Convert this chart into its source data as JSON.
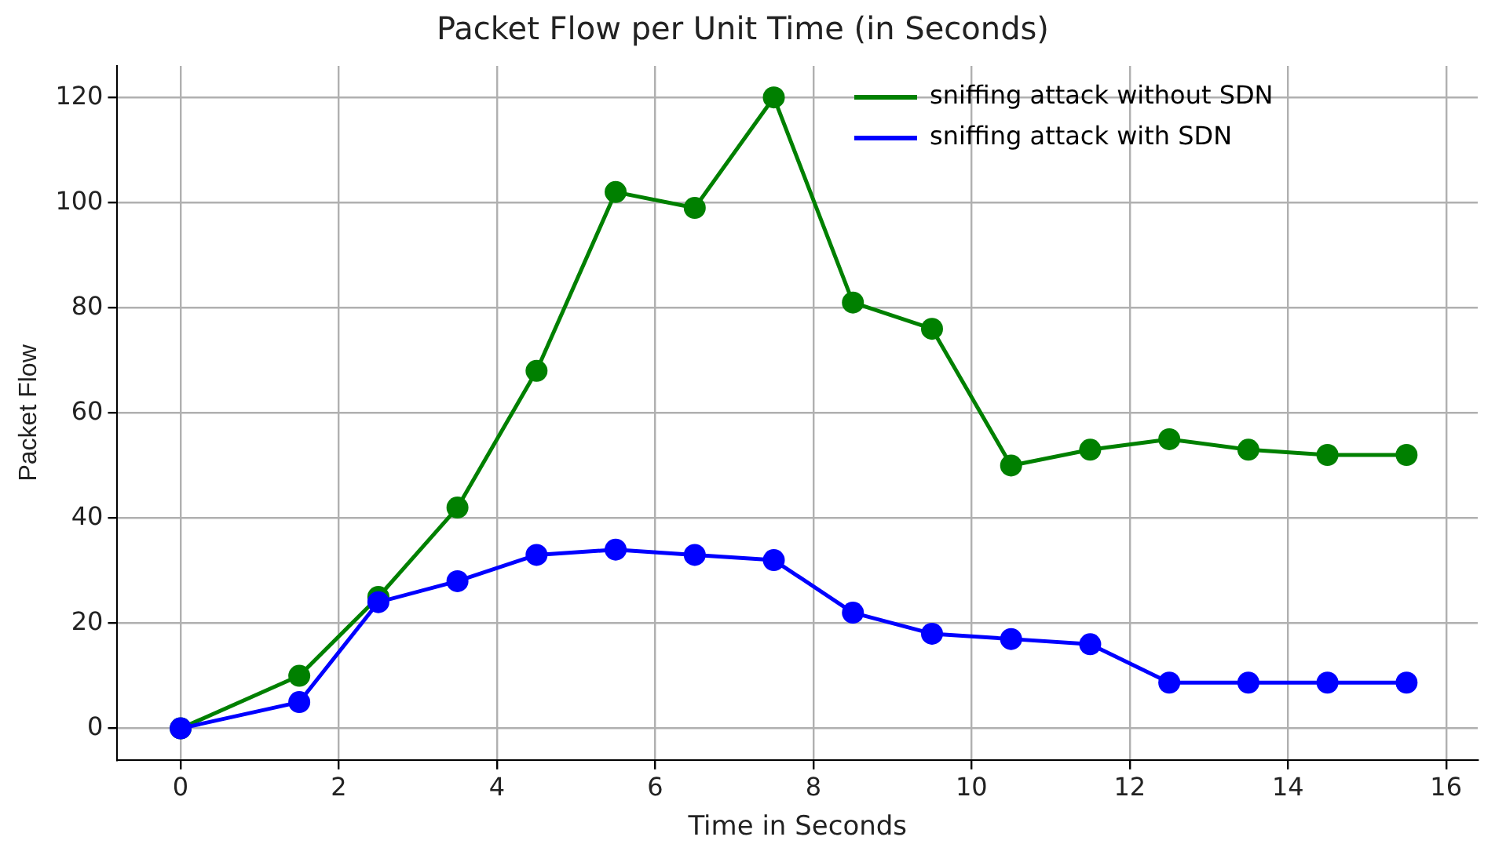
{
  "chart_data": {
    "type": "line",
    "title": "Packet Flow per Unit Time (in Seconds)",
    "xlabel": "Time in Seconds",
    "ylabel": "Packet Flow",
    "x": [
      0,
      1.5,
      2.5,
      3.5,
      4.5,
      5.5,
      6.5,
      7.5,
      8.5,
      9.5,
      10.5,
      11.5,
      12.5,
      13.5,
      14.5,
      15.5
    ],
    "series": [
      {
        "name": "sniffing attack without SDN",
        "color": "#008000",
        "values": [
          0,
          10,
          25,
          42,
          68,
          102,
          99,
          120,
          81,
          76,
          50,
          53,
          55,
          53,
          52,
          52
        ]
      },
      {
        "name": "sniffing attack with SDN",
        "color": "#0000ff",
        "values": [
          0,
          5,
          24,
          28,
          33,
          34,
          33,
          32,
          22,
          18,
          17,
          16,
          8.7,
          8.7,
          8.7,
          8.7
        ]
      }
    ],
    "xlim": [
      -0.8,
      16.4
    ],
    "xticks": [
      0,
      2,
      4,
      6,
      8,
      10,
      12,
      14,
      16
    ],
    "ylim": [
      -6,
      126
    ],
    "yticks": [
      0,
      20,
      40,
      60,
      80,
      100,
      120
    ],
    "grid": true,
    "legend": "top right",
    "marker": "circle",
    "line_style": "solid"
  }
}
